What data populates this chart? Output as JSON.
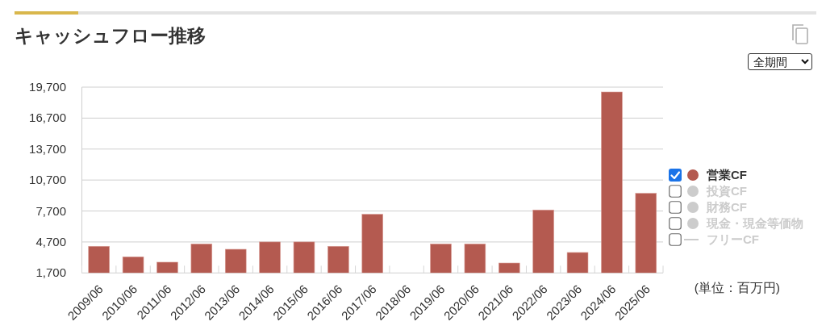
{
  "chart_data": {
    "type": "bar",
    "title": "キャッシュフロー推移",
    "categories": [
      "2009/06",
      "2010/06",
      "2011/06",
      "2012/06",
      "2013/06",
      "2014/06",
      "2015/06",
      "2016/06",
      "2017/06",
      "2018/06",
      "2019/06",
      "2020/06",
      "2021/06",
      "2022/06",
      "2023/06",
      "2024/06",
      "2025/06"
    ],
    "series": [
      {
        "name": "営業CF",
        "color": "#b45a50",
        "values": [
          4280,
          3260,
          2740,
          4510,
          3990,
          4700,
          4700,
          4280,
          7380,
          null,
          4510,
          4510,
          2660,
          7800,
          3680,
          19230,
          9410
        ]
      },
      {
        "name": "投資CF",
        "color": "#cccccc",
        "values": [
          null,
          null,
          null,
          null,
          null,
          null,
          null,
          null,
          null,
          null,
          null,
          null,
          null,
          null,
          null,
          null,
          null
        ]
      },
      {
        "name": "財務CF",
        "color": "#cccccc",
        "values": [
          null,
          null,
          null,
          null,
          null,
          null,
          null,
          null,
          null,
          null,
          null,
          null,
          null,
          null,
          null,
          null,
          null
        ]
      },
      {
        "name": "現金・現金等価物",
        "color": "#cccccc",
        "values": [
          null,
          null,
          null,
          null,
          null,
          null,
          null,
          null,
          null,
          null,
          null,
          null,
          null,
          null,
          null,
          null,
          null
        ]
      },
      {
        "name": "フリーCF",
        "type": "line",
        "color": "#cccccc",
        "values": [
          null,
          null,
          null,
          null,
          null,
          null,
          null,
          null,
          null,
          null,
          null,
          null,
          null,
          null,
          null,
          null,
          null
        ]
      }
    ],
    "ylim": [
      1700,
      19700
    ],
    "yticks": [
      {
        "value": 1700,
        "label": "1,700"
      },
      {
        "value": 4700,
        "label": "4,700"
      },
      {
        "value": 7700,
        "label": "7,700"
      },
      {
        "value": 10700,
        "label": "10,700"
      },
      {
        "value": 13700,
        "label": "13,700"
      },
      {
        "value": 16700,
        "label": "16,700"
      },
      {
        "value": 19700,
        "label": "19,700"
      }
    ],
    "grid": "y",
    "legend": "right",
    "annotations": [
      "全期間",
      "(単位：百万円)"
    ]
  }
}
